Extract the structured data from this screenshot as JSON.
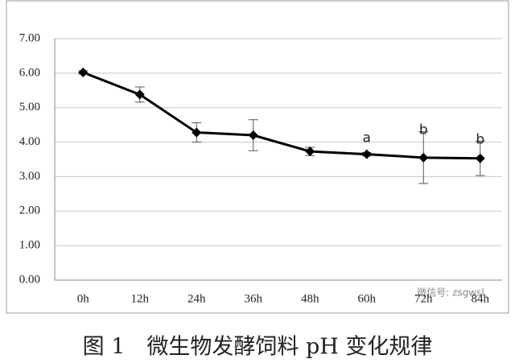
{
  "chart_data": {
    "type": "line",
    "caption": "图 1　微生物发酵饲料 pH 变化规律",
    "categories": [
      "0h",
      "12h",
      "24h",
      "36h",
      "48h",
      "60h",
      "72h",
      "84h"
    ],
    "series": [
      {
        "color": "#000000",
        "values": [
          6.02,
          5.38,
          4.28,
          4.2,
          3.73,
          3.65,
          3.55,
          3.53
        ],
        "errors": [
          0.05,
          0.22,
          0.28,
          0.45,
          0.12,
          0.05,
          0.75,
          0.5
        ]
      }
    ],
    "annotations": [
      {
        "text": "a",
        "x": "60h"
      },
      {
        "text": "b",
        "x": "72h"
      },
      {
        "text": "b",
        "x": "84h"
      }
    ],
    "ylim": [
      0,
      7
    ],
    "yticks": [
      {
        "value": 0,
        "label": "0.00"
      },
      {
        "value": 1,
        "label": "1.00"
      },
      {
        "value": 2,
        "label": "2.00"
      },
      {
        "value": 3,
        "label": "3.00"
      },
      {
        "value": 4,
        "label": "4.00"
      },
      {
        "value": 5,
        "label": "5.00"
      },
      {
        "value": 6,
        "label": "6.00"
      },
      {
        "value": 7,
        "label": "7.00"
      }
    ],
    "grid": true,
    "watermark": "微信号: zsgwsl"
  }
}
